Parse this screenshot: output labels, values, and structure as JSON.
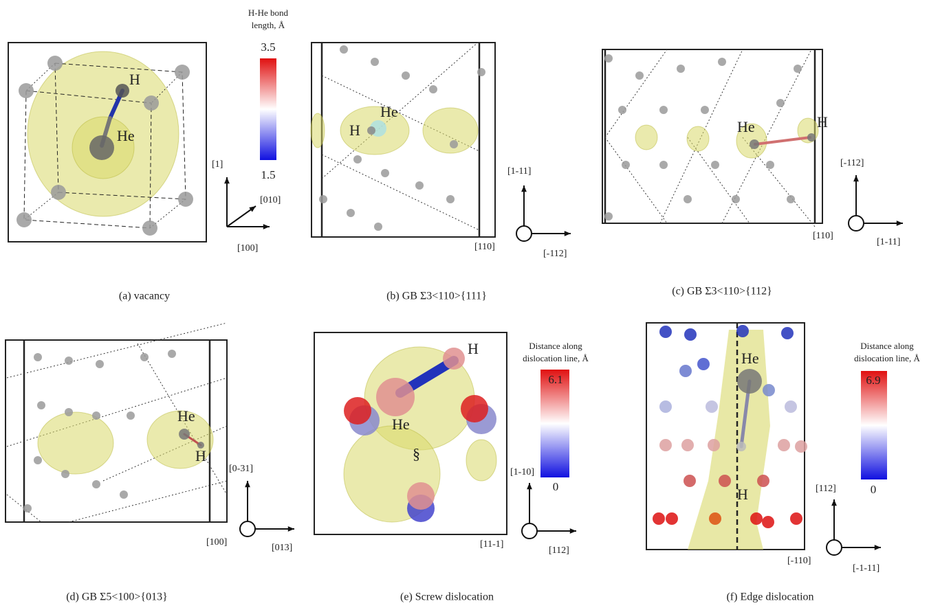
{
  "panels": [
    {
      "caption": "(a) vacancy",
      "atom_labels": [
        "H",
        "He"
      ],
      "axes": [
        "[1]",
        "[010]",
        "[100]"
      ]
    },
    {
      "caption": "(b) GB Σ3<110>{111}",
      "atom_labels": [
        "He",
        "H"
      ],
      "axes": [
        "[1-11]",
        "[110]",
        "[-112]"
      ]
    },
    {
      "caption": "(c) GB Σ3<110>{112}",
      "atom_labels": [
        "He",
        "H"
      ],
      "axes": [
        "[-112]",
        "[110]",
        "[1-11]"
      ]
    },
    {
      "caption": "(d) GB Σ5<100>{013}",
      "atom_labels": [
        "He",
        "H"
      ],
      "axes": [
        "[0-31]",
        "[100]",
        "[013]"
      ]
    },
    {
      "caption": "(e) Screw dislocation",
      "atom_labels": [
        "H",
        "He",
        "§"
      ],
      "axes": [
        "[1-10]",
        "[11-1]",
        "[112]"
      ]
    },
    {
      "caption": "(f) Edge dislocation",
      "atom_labels": [
        "He",
        "H"
      ],
      "axes": [
        "[112]",
        "[-110]",
        "[-1-11]"
      ]
    }
  ],
  "colorbars": [
    {
      "title": [
        "H-He bond",
        "length, Å"
      ],
      "max": "3.5",
      "min": "1.5"
    },
    {
      "title": [
        "Distance along",
        "dislocation line, Å"
      ],
      "max": "6.1",
      "min": "0"
    },
    {
      "title": [
        "Distance along",
        "dislocation line, Å"
      ],
      "max": "6.9",
      "min": "0"
    }
  ]
}
